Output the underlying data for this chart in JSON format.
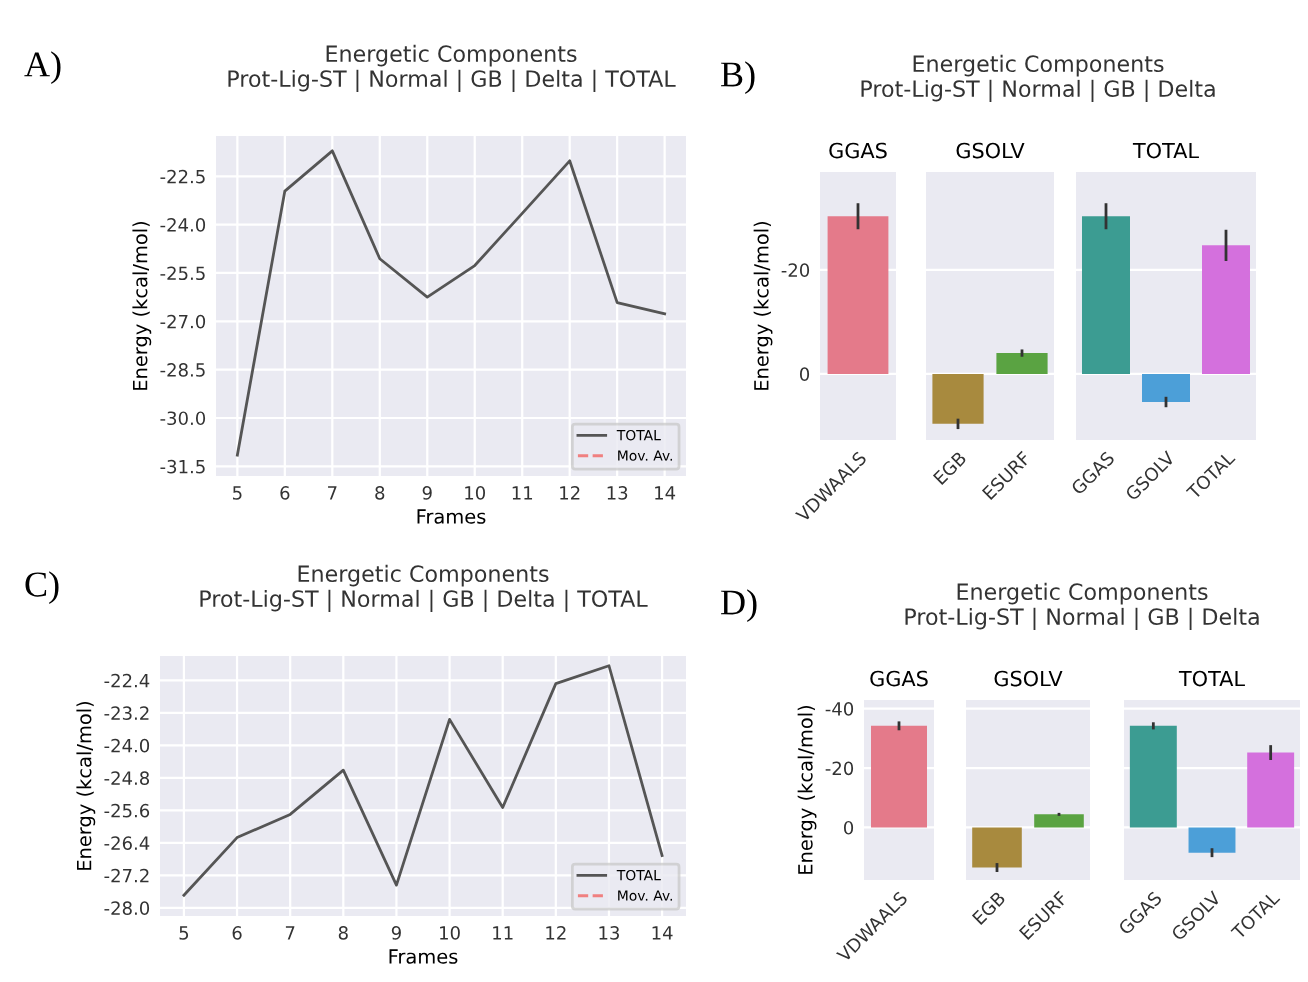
{
  "chart_data": [
    {
      "type": "line",
      "title": "Energetic Components\nProt-Lig-ST | Normal | GB | Delta | TOTAL",
      "annotations": [
        "A)"
      ],
      "xlabel": "Frames",
      "ylabel": "Energy (kcal/mol)",
      "x": [
        5,
        6,
        7,
        8,
        9,
        10,
        11,
        12,
        13,
        14
      ],
      "series": [
        {
          "name": "TOTAL",
          "color": "#555555",
          "values": [
            -31.15,
            -22.96,
            -21.71,
            -25.06,
            -26.25,
            -25.27,
            -23.65,
            -22.02,
            -26.42,
            -26.77
          ]
        },
        {
          "name": "Mov. Av.",
          "color": "#f08080",
          "line_style": "dashed",
          "values": [
            null,
            null,
            null,
            null,
            null,
            null,
            null,
            null,
            null,
            null
          ]
        }
      ],
      "xlim": [
        4.55,
        14.45
      ],
      "xticks": [
        5,
        6,
        7,
        8,
        9,
        10,
        11,
        12,
        13,
        14
      ],
      "ylim": [
        -31.8,
        -21.25
      ],
      "yticks": [
        -31.5,
        {
          "value": -30,
          "label": "-30.0"
        },
        -28.5,
        {
          "value": -27,
          "label": "-27.0"
        },
        -25.5,
        {
          "value": -24,
          "label": "-24.0"
        },
        -22.5
      ],
      "grid": true,
      "legend": "bottom right"
    },
    {
      "type": "bar",
      "title": "Energetic Components\nProt-Lig-ST | Normal | GB | Delta",
      "annotations": [
        "B)"
      ],
      "subtitle": "GGAS",
      "ylabel": "Energy (kcal/mol)",
      "categories": [
        "VDWAALS"
      ],
      "values": [
        -30.3
      ],
      "errors": [
        2.5
      ],
      "colors": [
        "#e47a8a"
      ],
      "ylim": [
        12.7,
        -38.8
      ],
      "yticks": [
        0,
        -20
      ],
      "grid": "y"
    },
    {
      "type": "bar",
      "subtitle": "GSOLV",
      "categories": [
        "EGB",
        "ESURF"
      ],
      "values": [
        9.6,
        -4.0
      ],
      "errors": [
        1,
        0.7
      ],
      "colors": [
        "#a88a3e",
        "#5aa342"
      ],
      "ylim": [
        12.7,
        -38.8
      ],
      "yticks": [
        0,
        -20
      ],
      "grid": "y",
      "tick_labels": "x"
    },
    {
      "type": "bar",
      "subtitle": "TOTAL",
      "categories": [
        "GGAS",
        "GSOLV",
        "TOTAL"
      ],
      "values": [
        -30.3,
        5.4,
        -24.7
      ],
      "errors": [
        2.5,
        1,
        3
      ],
      "colors": [
        "#3c9c92",
        "#4c9fd8",
        "#d470dd"
      ],
      "ylim": [
        12.7,
        -38.8
      ],
      "yticks": [
        0,
        -20
      ],
      "grid": "y",
      "tick_labels": "x"
    },
    {
      "type": "line",
      "title": "Energetic Components\nProt-Lig-ST | Normal | GB | Delta | TOTAL",
      "annotations": [
        "C)"
      ],
      "xlabel": "Frames",
      "ylabel": "Energy (kcal/mol)",
      "x": [
        5,
        6,
        7,
        8,
        9,
        10,
        11,
        12,
        13,
        14
      ],
      "series": [
        {
          "name": "TOTAL",
          "color": "#555555",
          "values": [
            -27.69,
            -26.27,
            -25.7,
            -24.61,
            -27.44,
            -23.36,
            -25.53,
            -22.48,
            -22.04,
            -26.71
          ]
        },
        {
          "name": "Mov. Av.",
          "color": "#f08080",
          "line_style": "dashed",
          "values": [
            null,
            null,
            null,
            null,
            null,
            null,
            null,
            null,
            null,
            null
          ]
        }
      ],
      "xlim": [
        4.55,
        14.45
      ],
      "xticks": [
        5,
        6,
        7,
        8,
        9,
        10,
        11,
        12,
        13,
        14
      ],
      "ylim": [
        -28.2,
        -21.8
      ],
      "yticks": [
        {
          "value": -28,
          "label": "-28.0"
        },
        -27.2,
        -26.4,
        -25.6,
        -24.8,
        {
          "value": -24,
          "label": "-24.0"
        },
        -23.2,
        -22.4
      ],
      "grid": true,
      "legend": "bottom right"
    },
    {
      "type": "bar",
      "title": "Energetic Components\nProt-Lig-ST | Normal | GB | Delta",
      "annotations": [
        "D)"
      ],
      "subtitle": "GGAS",
      "ylabel": "Energy (kcal/mol)",
      "categories": [
        "VDWAALS"
      ],
      "values": [
        -34.2
      ],
      "errors": [
        1.5
      ],
      "colors": [
        "#e47a8a"
      ],
      "ylim": [
        17.7,
        -42.9
      ],
      "yticks": [
        0,
        -20,
        -40
      ],
      "grid": "y"
    },
    {
      "type": "bar",
      "subtitle": "GSOLV",
      "categories": [
        "EGB",
        "ESURF"
      ],
      "values": [
        13.5,
        -4.4
      ],
      "errors": [
        1.5,
        0.5
      ],
      "colors": [
        "#a88a3e",
        "#5aa342"
      ],
      "ylim": [
        17.7,
        -42.9
      ],
      "yticks": [
        0,
        -20,
        -40
      ],
      "grid": "y",
      "tick_labels": "x"
    },
    {
      "type": "bar",
      "subtitle": "TOTAL",
      "categories": [
        "GGAS",
        "GSOLV",
        "TOTAL"
      ],
      "values": [
        -34.2,
        8.5,
        -25.2
      ],
      "errors": [
        1.2,
        1.5,
        2.5
      ],
      "colors": [
        "#3c9c92",
        "#4c9fd8",
        "#d470dd"
      ],
      "ylim": [
        17.7,
        -42.9
      ],
      "yticks": [
        0,
        -20,
        -40
      ],
      "grid": "y",
      "tick_labels": "x"
    }
  ]
}
